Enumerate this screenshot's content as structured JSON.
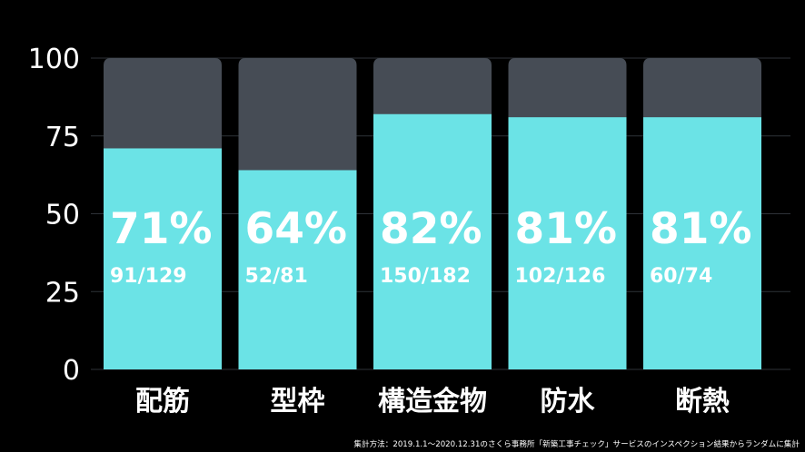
{
  "chart_data": {
    "type": "bar",
    "categories": [
      "配筋",
      "型枠",
      "構造金物",
      "防水",
      "断熱"
    ],
    "series": [
      {
        "values": [
          71,
          64,
          82,
          81,
          81
        ]
      }
    ],
    "percent_labels": [
      "71%",
      "64%",
      "82%",
      "81%",
      "81%"
    ],
    "count_labels": [
      "91/129",
      "52/81",
      "150/182",
      "102/126",
      "60/74"
    ],
    "ylim": [
      0,
      100
    ],
    "yticks": [
      "0",
      "25",
      "50",
      "75",
      "100"
    ],
    "ytick_values": [
      0,
      25,
      50,
      75,
      100
    ],
    "grid": true,
    "colors": {
      "fill": "#6be3e6",
      "background_bar": "#464c55",
      "grid": "#2e3238",
      "text": "#ffffff"
    }
  },
  "footnote": "集計方法：2019.1.1～2020.12.31のさくら事務所「新築工事チェック」サービスのインスペクション結果からランダムに集計"
}
